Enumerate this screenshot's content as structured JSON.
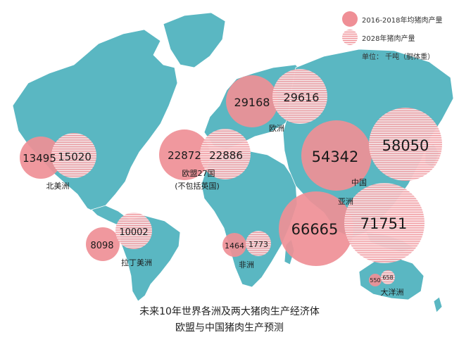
{
  "legend": {
    "solid_label": "2016-2018年均猪肉产量",
    "striped_label": "2028年猪肉产量",
    "unit_label": "单位： 千吨（胴体重）"
  },
  "colors": {
    "land": "#5ab7c2",
    "land_stroke": "#ffffff",
    "bubble_fill": "#ef8f96",
    "bubble_stripe": "#ef8f96"
  },
  "caption": {
    "line1": "未来10年世界各洲及两大猪肉生产经济体",
    "line2": "欧盟与中国猪肉生产预测"
  },
  "regions": [
    {
      "key": "north_america",
      "label": "北美洲",
      "v2016": "13495",
      "v2028": "15020"
    },
    {
      "key": "latin_america",
      "label": "拉丁美洲",
      "v2016": "8098",
      "v2028": "10002"
    },
    {
      "key": "eu27",
      "label": "欧盟27国",
      "sublabel": "(不包括英国)",
      "v2016": "22872",
      "v2028": "22886"
    },
    {
      "key": "europe",
      "label": "欧洲",
      "v2016": "29168",
      "v2028": "29616"
    },
    {
      "key": "africa",
      "label": "非洲",
      "v2016": "1464",
      "v2028": "1773"
    },
    {
      "key": "china",
      "label": "中国",
      "v2016": "54342",
      "v2028": "58050"
    },
    {
      "key": "asia",
      "label": "亚洲",
      "v2016": "66665",
      "v2028": "71751"
    },
    {
      "key": "oceania",
      "label": "大洋洲",
      "v2016": "550",
      "v2028": "658"
    }
  ]
}
